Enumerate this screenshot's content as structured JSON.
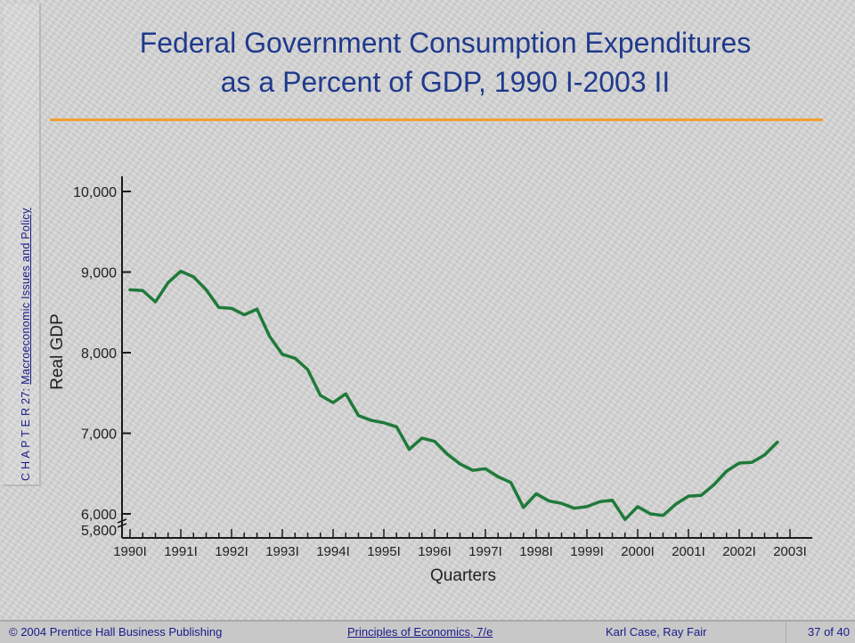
{
  "side_label": {
    "chapter": "C H A P T E R  27:",
    "subtitle": "Macroeconomic Issues and Policy"
  },
  "title": {
    "line1": "Federal Government Consumption Expenditures",
    "line2": "as a Percent of GDP, 1990 I-2003 II"
  },
  "footer": {
    "publisher": "© 2004 Prentice Hall Business Publishing",
    "book": "Principles of Economics, 7/e",
    "authors": "Karl Case, Ray Fair",
    "page": "37 of 40"
  },
  "colors": {
    "title": "#1f3a8c",
    "rule": "#f0a030",
    "line": "#1f7a3a",
    "axis": "#1a1a1a"
  },
  "chart_data": {
    "type": "line",
    "xlabel": "Quarters",
    "ylabel": "Real GDP",
    "ylim": [
      5800,
      10000
    ],
    "yticks": [
      5800,
      6000,
      7000,
      8000,
      9000,
      10000
    ],
    "ytick_labels": [
      "5,800",
      "6,000",
      "7,000",
      "8,000",
      "9,000",
      "10,000"
    ],
    "xtick_labels": [
      "1990I",
      "1991I",
      "1992I",
      "1993I",
      "1994I",
      "1995I",
      "1996I",
      "1997I",
      "1998I",
      "1999I",
      "2000I",
      "2001I",
      "2002I",
      "2003I"
    ],
    "x_start_year": 1990,
    "series": [
      {
        "values": [
          8780,
          8770,
          8630,
          8870,
          9010,
          8940,
          8780,
          8560,
          8550,
          8470,
          8540,
          8200,
          7980,
          7930,
          7790,
          7470,
          7380,
          7490,
          7220,
          7160,
          7130,
          7080,
          6800,
          6940,
          6900,
          6740,
          6620,
          6540,
          6560,
          6460,
          6390,
          6080,
          6250,
          6160,
          6130,
          6070,
          6090,
          6150,
          6170,
          5930,
          6090,
          6000,
          5980,
          6120,
          6220,
          6230,
          6360,
          6530,
          6630,
          6640,
          6730,
          6890
        ]
      }
    ]
  }
}
